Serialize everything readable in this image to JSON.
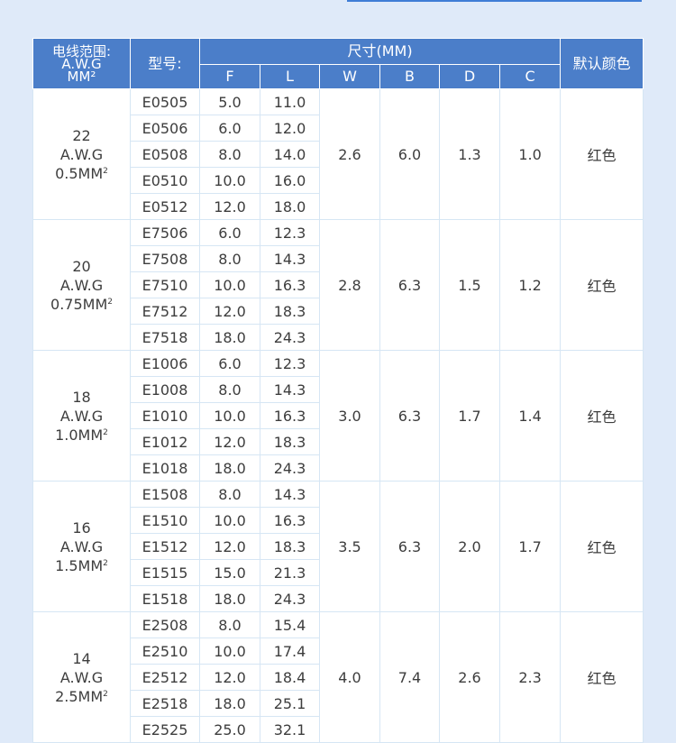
{
  "header": {
    "range_line1": "电线范围:",
    "range_line2": "A.W.G",
    "range_line3": "MM²",
    "model": "型号:",
    "dims": "尺寸(MM)",
    "cols": [
      "F",
      "L",
      "W",
      "B",
      "D",
      "C"
    ],
    "color": "默认颜色"
  },
  "groups": [
    {
      "gauge": "22",
      "awg": "A.W.G",
      "area": "0.5MM",
      "sup": "2",
      "W": "2.6",
      "B": "6.0",
      "D": "1.3",
      "C": "1.0",
      "color": "红色",
      "rows": [
        {
          "model": "E0505",
          "F": "5.0",
          "L": "11.0"
        },
        {
          "model": "E0506",
          "F": "6.0",
          "L": "12.0"
        },
        {
          "model": "E0508",
          "F": "8.0",
          "L": "14.0"
        },
        {
          "model": "E0510",
          "F": "10.0",
          "L": "16.0"
        },
        {
          "model": "E0512",
          "F": "12.0",
          "L": "18.0"
        }
      ]
    },
    {
      "gauge": "20",
      "awg": "A.W.G",
      "area": "0.75MM",
      "sup": "2",
      "W": "2.8",
      "B": "6.3",
      "D": "1.5",
      "C": "1.2",
      "color": "红色",
      "rows": [
        {
          "model": "E7506",
          "F": "6.0",
          "L": "12.3"
        },
        {
          "model": "E7508",
          "F": "8.0",
          "L": "14.3"
        },
        {
          "model": "E7510",
          "F": "10.0",
          "L": "16.3"
        },
        {
          "model": "E7512",
          "F": "12.0",
          "L": "18.3"
        },
        {
          "model": "E7518",
          "F": "18.0",
          "L": "24.3"
        }
      ]
    },
    {
      "gauge": "18",
      "awg": "A.W.G",
      "area": "1.0MM",
      "sup": "2",
      "W": "3.0",
      "B": "6.3",
      "D": "1.7",
      "C": "1.4",
      "color": "红色",
      "rows": [
        {
          "model": "E1006",
          "F": "6.0",
          "L": "12.3"
        },
        {
          "model": "E1008",
          "F": "8.0",
          "L": "14.3"
        },
        {
          "model": "E1010",
          "F": "10.0",
          "L": "16.3"
        },
        {
          "model": "E1012",
          "F": "12.0",
          "L": "18.3"
        },
        {
          "model": "E1018",
          "F": "18.0",
          "L": "24.3"
        }
      ]
    },
    {
      "gauge": "16",
      "awg": "A.W.G",
      "area": "1.5MM",
      "sup": "2",
      "W": "3.5",
      "B": "6.3",
      "D": "2.0",
      "C": "1.7",
      "color": "红色",
      "rows": [
        {
          "model": "E1508",
          "F": "8.0",
          "L": "14.3"
        },
        {
          "model": "E1510",
          "F": "10.0",
          "L": "16.3"
        },
        {
          "model": "E1512",
          "F": "12.0",
          "L": "18.3"
        },
        {
          "model": "E1515",
          "F": "15.0",
          "L": "21.3"
        },
        {
          "model": "E1518",
          "F": "18.0",
          "L": "24.3"
        }
      ]
    },
    {
      "gauge": "14",
      "awg": "A.W.G",
      "area": "2.5MM",
      "sup": "2",
      "W": "4.0",
      "B": "7.4",
      "D": "2.6",
      "C": "2.3",
      "color": "红色",
      "rows": [
        {
          "model": "E2508",
          "F": "8.0",
          "L": "15.4"
        },
        {
          "model": "E2510",
          "F": "10.0",
          "L": "17.4"
        },
        {
          "model": "E2512",
          "F": "12.0",
          "L": "18.4"
        },
        {
          "model": "E2518",
          "F": "18.0",
          "L": "25.1"
        },
        {
          "model": "E2525",
          "F": "25.0",
          "L": "32.1"
        }
      ]
    }
  ]
}
